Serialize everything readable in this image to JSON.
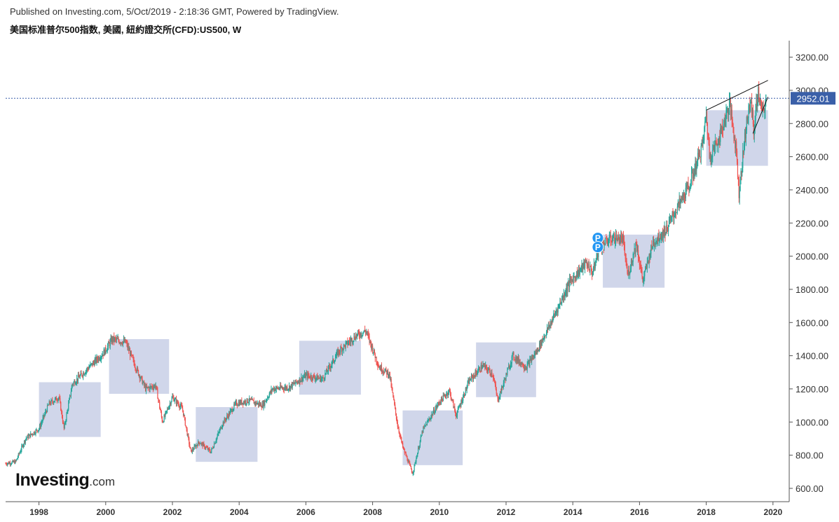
{
  "header": {
    "published": "Published on Investing.com, 5/Oct/2019 - 2:18:36 GMT, Powered by TradingView.",
    "symbol": "美国标准普尔500指数, 美國, 紐約證交所(CFD):US500, W"
  },
  "logo": {
    "main": "Investing",
    "suffix": ".com"
  },
  "colors": {
    "up": "#26a69a",
    "down": "#ef5350",
    "box": "#c8cfe6",
    "price_line": "#3a5fa8",
    "price_tag": "#3a5fa8",
    "axis": "#555555",
    "marker": "#2196f3"
  },
  "chart_data": {
    "type": "candlestick",
    "title": "",
    "xlabel": "",
    "ylabel": "",
    "x_ticks": [
      "1998",
      "2000",
      "2002",
      "2004",
      "2006",
      "2008",
      "2010",
      "2012",
      "2014",
      "2016",
      "2018",
      "2020"
    ],
    "y_ticks": [
      "600.00",
      "800.00",
      "1000.00",
      "1200.00",
      "1400.00",
      "1600.00",
      "1800.00",
      "2000.00",
      "2200.00",
      "2400.00",
      "2600.00",
      "2800.00",
      "3000.00",
      "3200.00"
    ],
    "ylim": [
      520,
      3290
    ],
    "xlim": [
      1997.0,
      2019.9
    ],
    "grid": false,
    "last_price": "2952.01",
    "last_price_value": 2952.01,
    "price_path": [
      [
        1997.0,
        750
      ],
      [
        1997.3,
        760
      ],
      [
        1997.6,
        900
      ],
      [
        1998.0,
        960
      ],
      [
        1998.3,
        1110
      ],
      [
        1998.6,
        1150
      ],
      [
        1998.75,
        960
      ],
      [
        1999.0,
        1230
      ],
      [
        1999.5,
        1330
      ],
      [
        1999.95,
        1420
      ],
      [
        2000.2,
        1500
      ],
      [
        2000.6,
        1480
      ],
      [
        2000.9,
        1330
      ],
      [
        2001.2,
        1200
      ],
      [
        2001.5,
        1220
      ],
      [
        2001.7,
        1000
      ],
      [
        2002.0,
        1150
      ],
      [
        2002.3,
        1080
      ],
      [
        2002.55,
        820
      ],
      [
        2002.8,
        880
      ],
      [
        2003.15,
        820
      ],
      [
        2003.5,
        990
      ],
      [
        2003.9,
        1110
      ],
      [
        2004.3,
        1130
      ],
      [
        2004.7,
        1100
      ],
      [
        2005.0,
        1200
      ],
      [
        2005.5,
        1210
      ],
      [
        2006.0,
        1280
      ],
      [
        2006.5,
        1260
      ],
      [
        2007.0,
        1430
      ],
      [
        2007.5,
        1520
      ],
      [
        2007.8,
        1550
      ],
      [
        2008.2,
        1330
      ],
      [
        2008.5,
        1290
      ],
      [
        2008.75,
        980
      ],
      [
        2008.9,
        850
      ],
      [
        2009.2,
        690
      ],
      [
        2009.5,
        950
      ],
      [
        2010.0,
        1120
      ],
      [
        2010.3,
        1190
      ],
      [
        2010.5,
        1040
      ],
      [
        2010.9,
        1250
      ],
      [
        2011.3,
        1340
      ],
      [
        2011.6,
        1290
      ],
      [
        2011.75,
        1130
      ],
      [
        2012.2,
        1400
      ],
      [
        2012.6,
        1330
      ],
      [
        2012.9,
        1420
      ],
      [
        2013.3,
        1580
      ],
      [
        2013.9,
        1840
      ],
      [
        2014.4,
        1960
      ],
      [
        2014.6,
        1900
      ],
      [
        2014.8,
        2060
      ],
      [
        2015.2,
        2110
      ],
      [
        2015.5,
        2100
      ],
      [
        2015.65,
        1880
      ],
      [
        2015.9,
        2080
      ],
      [
        2016.1,
        1850
      ],
      [
        2016.4,
        2080
      ],
      [
        2016.8,
        2160
      ],
      [
        2017.1,
        2280
      ],
      [
        2017.5,
        2430
      ],
      [
        2017.9,
        2680
      ],
      [
        2018.0,
        2860
      ],
      [
        2018.1,
        2600
      ],
      [
        2018.4,
        2720
      ],
      [
        2018.7,
        2920
      ],
      [
        2018.9,
        2640
      ],
      [
        2018.98,
        2380
      ],
      [
        2019.2,
        2800
      ],
      [
        2019.35,
        2940
      ],
      [
        2019.42,
        2750
      ],
      [
        2019.55,
        2990
      ],
      [
        2019.7,
        2850
      ],
      [
        2019.8,
        2952
      ]
    ],
    "boxes": [
      {
        "x": [
          1998.0,
          1999.85
        ],
        "y": [
          910,
          1240
        ]
      },
      {
        "x": [
          2000.1,
          2001.9
        ],
        "y": [
          1170,
          1500
        ]
      },
      {
        "x": [
          2002.7,
          2004.55
        ],
        "y": [
          760,
          1090
        ]
      },
      {
        "x": [
          2005.8,
          2007.65
        ],
        "y": [
          1165,
          1490
        ]
      },
      {
        "x": [
          2008.9,
          2010.7
        ],
        "y": [
          740,
          1070
        ]
      },
      {
        "x": [
          2011.1,
          2012.9
        ],
        "y": [
          1150,
          1480
        ]
      },
      {
        "x": [
          2014.9,
          2016.75
        ],
        "y": [
          1810,
          2130
        ]
      },
      {
        "x": [
          2018.0,
          2019.85
        ],
        "y": [
          2545,
          2880
        ]
      }
    ],
    "trendlines": [
      {
        "from": [
          2018.0,
          2880
        ],
        "to": [
          2019.85,
          3060
        ]
      },
      {
        "from": [
          2019.4,
          2740
        ],
        "to": [
          2019.85,
          2960
        ]
      }
    ],
    "markers": [
      {
        "label": "P",
        "x": 2014.75,
        "y": 2110
      },
      {
        "label": "P",
        "x": 2014.75,
        "y": 2055
      }
    ]
  }
}
